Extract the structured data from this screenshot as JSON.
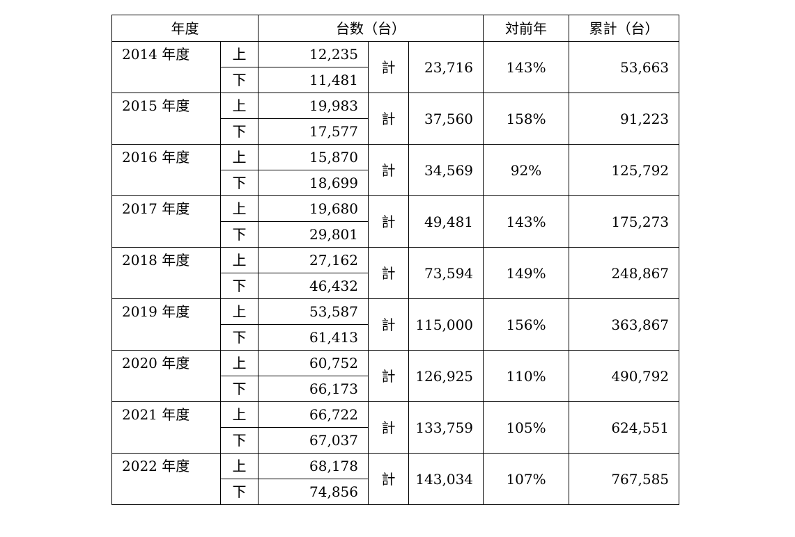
{
  "headers": {
    "year": "年度",
    "units": "台数（台）",
    "yoy": "対前年",
    "cumulative": "累計（台）"
  },
  "labels": {
    "first_half": "上",
    "second_half": "下",
    "total": "計"
  },
  "rows": [
    {
      "year": "2014 年度",
      "first": "12,235",
      "second": "11,481",
      "total": "23,716",
      "yoy": "143%",
      "cumulative": "53,663"
    },
    {
      "year": "2015 年度",
      "first": "19,983",
      "second": "17,577",
      "total": "37,560",
      "yoy": "158%",
      "cumulative": "91,223"
    },
    {
      "year": "2016 年度",
      "first": "15,870",
      "second": "18,699",
      "total": "34,569",
      "yoy": "92%",
      "cumulative": "125,792"
    },
    {
      "year": "2017 年度",
      "first": "19,680",
      "second": "29,801",
      "total": "49,481",
      "yoy": "143%",
      "cumulative": "175,273"
    },
    {
      "year": "2018 年度",
      "first": "27,162",
      "second": "46,432",
      "total": "73,594",
      "yoy": "149%",
      "cumulative": "248,867"
    },
    {
      "year": "2019 年度",
      "first": "53,587",
      "second": "61,413",
      "total": "115,000",
      "yoy": "156%",
      "cumulative": "363,867"
    },
    {
      "year": "2020 年度",
      "first": "60,752",
      "second": "66,173",
      "total": "126,925",
      "yoy": "110%",
      "cumulative": "490,792"
    },
    {
      "year": "2021 年度",
      "first": "66,722",
      "second": "67,037",
      "total": "133,759",
      "yoy": "105%",
      "cumulative": "624,551"
    },
    {
      "year": "2022 年度",
      "first": "68,178",
      "second": "74,856",
      "total": "143,034",
      "yoy": "107%",
      "cumulative": "767,585"
    }
  ]
}
